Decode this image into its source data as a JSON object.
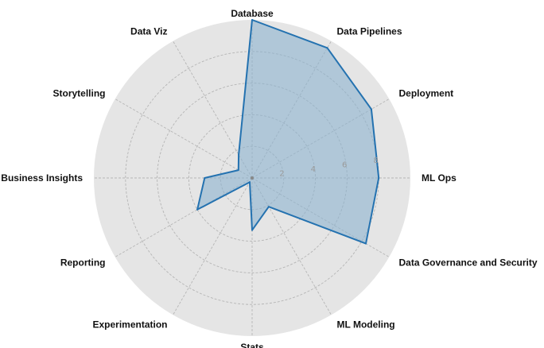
{
  "chart_data": {
    "type": "radar",
    "categories": [
      "Database",
      "Data Pipelines",
      "Deployment",
      "ML Ops",
      "Data Governance and Security",
      "ML Modeling",
      "Stats",
      "Experimentation",
      "Reporting",
      "Business Insights",
      "Storytelling",
      "Data Viz"
    ],
    "values": [
      10,
      9.5,
      8.7,
      8.0,
      8.3,
      2.1,
      3.3,
      0.3,
      4.0,
      3.0,
      1.0,
      1.7
    ],
    "rlim": [
      0,
      10
    ],
    "rticks": [
      "2",
      "4",
      "6",
      "8"
    ],
    "grid": true,
    "colors": {
      "background": "#e5e5e5",
      "grid": "#b5b5b5",
      "line": "#2472b0",
      "fill": "#8cb3cf"
    }
  }
}
